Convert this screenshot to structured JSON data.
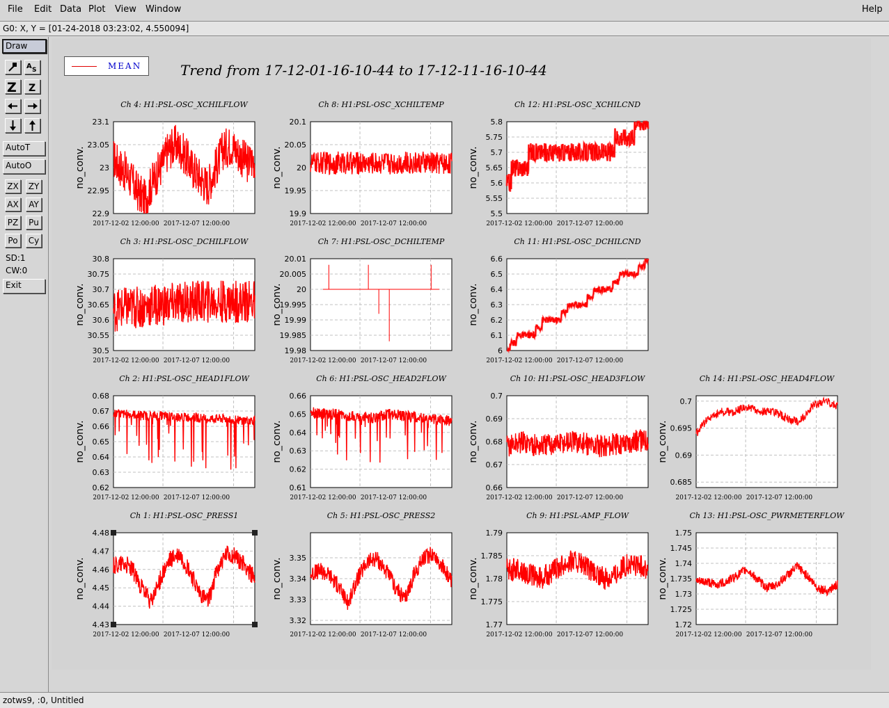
{
  "menu": {
    "file": "File",
    "edit": "Edit",
    "data": "Data",
    "plot": "Plot",
    "view": "View",
    "window": "Window",
    "help": "Help"
  },
  "coord_readout": "G0: X, Y = [01-24-2018 03:23:02, 4.550094]",
  "toolbar": {
    "draw": "Draw",
    "autot": "AutoT",
    "autoo": "AutoO",
    "zx": "ZX",
    "zy": "ZY",
    "ax": "AX",
    "ay": "AY",
    "pz": "PZ",
    "pu": "Pu",
    "po": "Po",
    "cy": "Cy",
    "sd": "SD:1",
    "cw": "CW:0",
    "exit": "Exit",
    "icon_buttons": [
      "zoom-icon",
      "text-size-icon",
      "zoom-in-icon",
      "zoom-out-icon",
      "arrow-left-icon",
      "arrow-right-icon",
      "arrow-down-icon",
      "arrow-up-icon"
    ]
  },
  "statusbar": "zotws9, :0, Untitled",
  "legend": {
    "label": "MEAN",
    "color": "#e00000"
  },
  "title": "Trend from 17-12-01-16-10-44 to 17-12-11-16-10-44",
  "colors": {
    "trace": "#ff0000",
    "plot_bg": "#ffffff",
    "canvas_bg": "#d3d3d3",
    "grid": "#c0c0c0"
  },
  "chart_data": [
    {
      "type": "line",
      "title": "Ch 4: H1:PSL-OSC_XCHILFLOW",
      "ylabel": "no_conv.",
      "yticks": [
        "23.1",
        "23.05",
        "23",
        "22.95",
        "22.9"
      ],
      "ylim": [
        22.9,
        23.1
      ],
      "xticks": [
        "2017-12-02 12:00:00",
        "2017-12-07 12:00:00"
      ],
      "profile": [
        23.02,
        23.0,
        22.98,
        22.95,
        22.93,
        22.97,
        23.0,
        23.04,
        23.05,
        23.03,
        23.0,
        22.98,
        22.96,
        23.0,
        23.04,
        23.05,
        23.03,
        23.01,
        23.02
      ],
      "noise": 0.045,
      "style": "dense"
    },
    {
      "type": "line",
      "title": "Ch 8: H1:PSL-OSC_XCHILTEMP",
      "ylabel": "no_conv.",
      "yticks": [
        "20.1",
        "20.05",
        "20",
        "19.95",
        "19.9"
      ],
      "ylim": [
        19.9,
        20.1
      ],
      "xticks": [
        "2017-12-02 12:00:00",
        "2017-12-07 12:00:00"
      ],
      "profile": [
        20.01,
        20.01,
        20.01,
        20.01,
        20.01,
        20.01,
        20.01,
        20.01,
        20.01,
        20.01,
        20.01
      ],
      "noise": 0.025,
      "style": "dense"
    },
    {
      "type": "line",
      "title": "Ch 12: H1:PSL-OSC_XCHILCND",
      "ylabel": "no_conv.",
      "yticks": [
        "5.8",
        "5.75",
        "5.7",
        "5.65",
        "5.6",
        "5.55",
        "5.5"
      ],
      "ylim": [
        5.5,
        5.8
      ],
      "xticks": [
        "2017-12-02 12:00:00",
        "2017-12-07 12:00:00"
      ],
      "profile": [
        5.61,
        5.65,
        5.68,
        5.7,
        5.7,
        5.7,
        5.7,
        5.7,
        5.7,
        5.72,
        5.75,
        5.78,
        5.8
      ],
      "noise": 0.03,
      "style": "step"
    },
    {
      "type": "line",
      "title": "Ch 3: H1:PSL-OSC_DCHILFLOW",
      "ylabel": "no_conv.",
      "yticks": [
        "30.8",
        "30.75",
        "30.7",
        "30.65",
        "30.6",
        "30.55",
        "30.5"
      ],
      "ylim": [
        30.5,
        30.8
      ],
      "xticks": [
        "2017-12-02 12:00:00",
        "2017-12-07 12:00:00"
      ],
      "profile": [
        30.63,
        30.64,
        30.64,
        30.65,
        30.65,
        30.66,
        30.66,
        30.66,
        30.66,
        30.66,
        30.66
      ],
      "noise": 0.07,
      "style": "dense"
    },
    {
      "type": "line",
      "title": "Ch 7: H1:PSL-OSC_DCHILTEMP",
      "ylabel": "no_conv.",
      "yticks": [
        "20.01",
        "20.005",
        "20",
        "19.995",
        "19.99",
        "19.985",
        "19.98"
      ],
      "ylim": [
        19.98,
        20.01
      ],
      "xticks": [
        "2017-12-02 12:00:00",
        "2017-12-07 12:00:00"
      ],
      "profile": [
        20.0,
        20.0
      ],
      "noise": 0,
      "style": "spikes"
    },
    {
      "type": "line",
      "title": "Ch 11: H1:PSL-OSC_DCHILCND",
      "ylabel": "no_conv.",
      "yticks": [
        "6.6",
        "6.5",
        "6.4",
        "6.3",
        "6.2",
        "6.1",
        "6"
      ],
      "ylim": [
        6.0,
        6.6
      ],
      "xticks": [
        "2017-12-02 12:00:00",
        "2017-12-07 12:00:00"
      ],
      "profile": [
        6.0,
        6.1,
        6.1,
        6.2,
        6.2,
        6.3,
        6.3,
        6.4,
        6.4,
        6.5,
        6.5,
        6.6
      ],
      "noise": 0.02,
      "style": "step"
    },
    {
      "type": "line",
      "title": "Ch 2: H1:PSL-OSC_HEAD1FLOW",
      "ylabel": "no_conv.",
      "yticks": [
        "0.68",
        "0.67",
        "0.66",
        "0.65",
        "0.64",
        "0.63",
        "0.62"
      ],
      "ylim": [
        0.62,
        0.68
      ],
      "xticks": [
        "2017-12-02 12:00:00",
        "2017-12-07 12:00:00"
      ],
      "profile": [
        0.668,
        0.668,
        0.667,
        0.667,
        0.666,
        0.666,
        0.665,
        0.665,
        0.664,
        0.664
      ],
      "noise": 0.003,
      "style": "downspikes"
    },
    {
      "type": "line",
      "title": "Ch 6: H1:PSL-OSC_HEAD2FLOW",
      "ylabel": "no_conv.",
      "yticks": [
        "0.66",
        "0.65",
        "0.64",
        "0.63",
        "0.62",
        "0.61"
      ],
      "ylim": [
        0.61,
        0.66
      ],
      "xticks": [
        "2017-12-02 12:00:00",
        "2017-12-07 12:00:00"
      ],
      "profile": [
        0.651,
        0.65,
        0.65,
        0.648,
        0.648,
        0.65,
        0.649,
        0.648,
        0.647,
        0.646
      ],
      "noise": 0.003,
      "style": "downspikes"
    },
    {
      "type": "line",
      "title": "Ch 10: H1:PSL-OSC_HEAD3FLOW",
      "ylabel": "no_conv.",
      "yticks": [
        "0.7",
        "0.69",
        "0.68",
        "0.67",
        "0.66"
      ],
      "ylim": [
        0.66,
        0.7
      ],
      "xticks": [
        "2017-12-02 12:00:00",
        "2017-12-07 12:00:00"
      ],
      "profile": [
        0.678,
        0.68,
        0.678,
        0.679,
        0.68,
        0.679,
        0.678,
        0.679,
        0.68,
        0.681
      ],
      "noise": 0.005,
      "style": "dense"
    },
    {
      "type": "line",
      "title": "Ch 14: H1:PSL-OSC_HEAD4FLOW",
      "ylabel": "no_conv.",
      "yticks": [
        "0.7",
        "0.695",
        "0.69",
        "0.685"
      ],
      "ylim": [
        0.684,
        0.701
      ],
      "xticks": [
        "2017-12-02 12:00:00",
        "2017-12-07 12:00:00"
      ],
      "profile": [
        0.694,
        0.697,
        0.698,
        0.698,
        0.699,
        0.698,
        0.698,
        0.697,
        0.696,
        0.699,
        0.7,
        0.699
      ],
      "noise": 0.0008,
      "style": "fine"
    },
    {
      "type": "line",
      "title": "Ch 1: H1:PSL-OSC_PRESS1",
      "ylabel": "no_conv.",
      "yticks": [
        "4.48",
        "4.47",
        "4.46",
        "4.45",
        "4.44",
        "4.43"
      ],
      "ylim": [
        4.43,
        4.48
      ],
      "xticks": [
        "2017-12-02 12:00:00",
        "2017-12-07 12:00:00"
      ],
      "profile": [
        4.462,
        4.464,
        4.46,
        4.45,
        4.442,
        4.455,
        4.465,
        4.468,
        4.46,
        4.448,
        4.442,
        4.46,
        4.468,
        4.467,
        4.462,
        4.455
      ],
      "noise": 0.005,
      "style": "dense"
    },
    {
      "type": "line",
      "title": "Ch 5: H1:PSL-OSC_PRESS2",
      "ylabel": "no_conv.",
      "yticks": [
        "3.35",
        "3.34",
        "3.33",
        "3.32"
      ],
      "ylim": [
        3.318,
        3.362
      ],
      "xticks": [
        "2017-12-02 12:00:00",
        "2017-12-07 12:00:00"
      ],
      "profile": [
        3.342,
        3.344,
        3.342,
        3.336,
        3.328,
        3.34,
        3.348,
        3.35,
        3.344,
        3.336,
        3.33,
        3.342,
        3.35,
        3.352,
        3.346,
        3.338
      ],
      "noise": 0.004,
      "style": "dense"
    },
    {
      "type": "line",
      "title": "Ch 9: H1:PSL-AMP_FLOW",
      "ylabel": "no_conv.",
      "yticks": [
        "1.79",
        "1.785",
        "1.78",
        "1.775",
        "1.77"
      ],
      "ylim": [
        1.77,
        1.79
      ],
      "xticks": [
        "2017-12-02 12:00:00",
        "2017-12-07 12:00:00"
      ],
      "profile": [
        1.782,
        1.782,
        1.781,
        1.78,
        1.781,
        1.783,
        1.784,
        1.783,
        1.781,
        1.78,
        1.781,
        1.783,
        1.783,
        1.782
      ],
      "noise": 0.0025,
      "style": "dense"
    },
    {
      "type": "line",
      "title": "Ch 13: H1:PSL-OSC_PWRMETERFLOW",
      "ylabel": "no_conv.",
      "yticks": [
        "1.75",
        "1.745",
        "1.74",
        "1.735",
        "1.73",
        "1.725",
        "1.72"
      ],
      "ylim": [
        1.72,
        1.75
      ],
      "xticks": [
        "2017-12-02 12:00:00",
        "2017-12-07 12:00:00"
      ],
      "profile": [
        1.734,
        1.734,
        1.733,
        1.734,
        1.736,
        1.738,
        1.735,
        1.732,
        1.733,
        1.736,
        1.739,
        1.736,
        1.732,
        1.731,
        1.733
      ],
      "noise": 0.0015,
      "style": "dense"
    }
  ]
}
